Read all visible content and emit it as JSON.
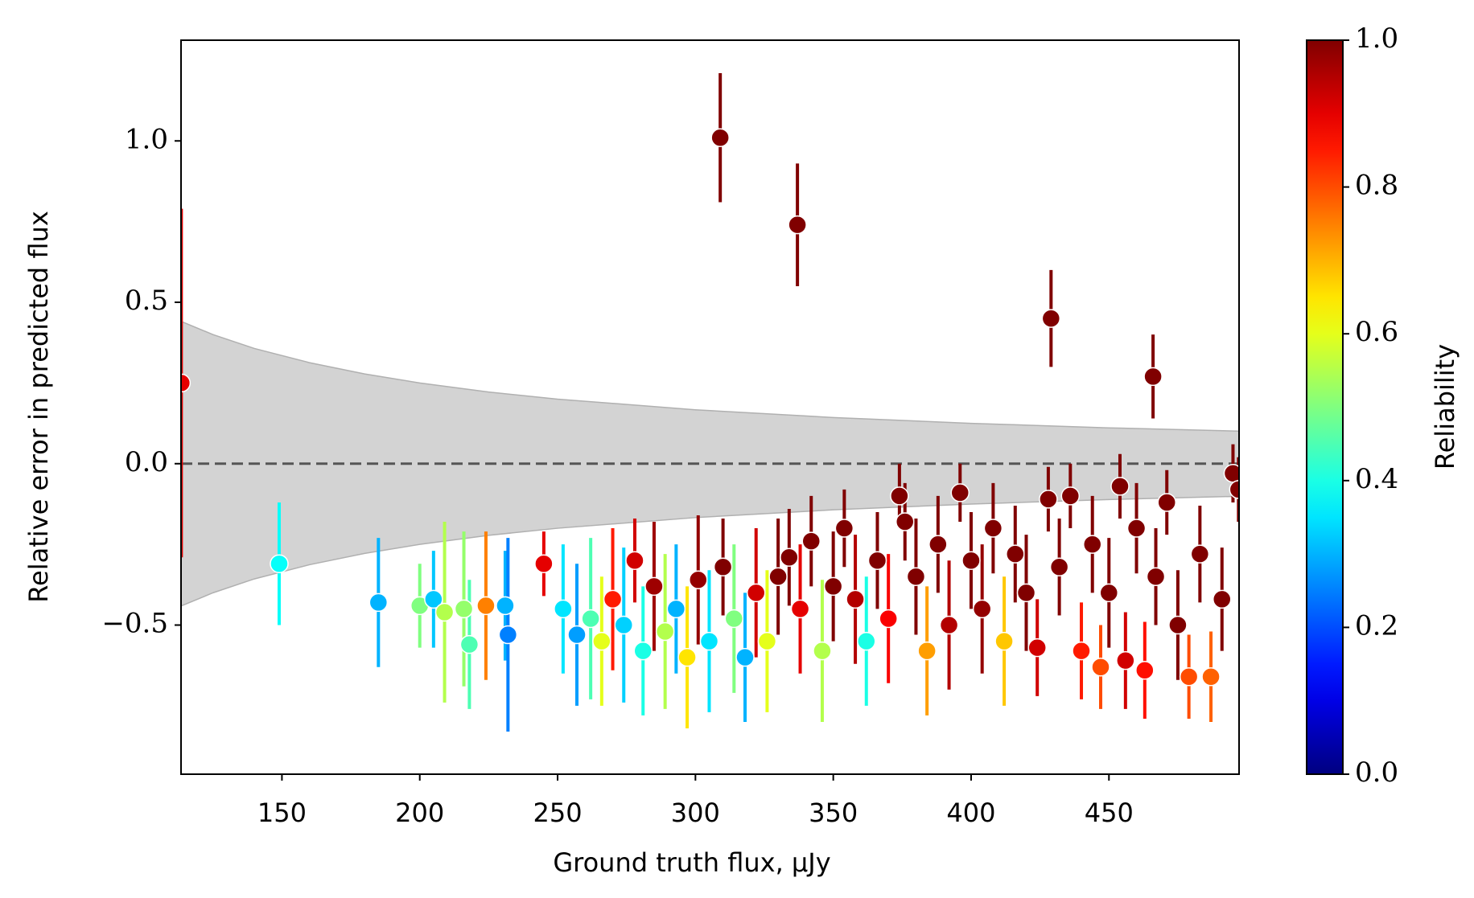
{
  "chart_data": {
    "type": "scatter",
    "xlabel": "Ground truth flux, μJy",
    "ylabel": "Relative error in predicted flux",
    "xlim": [
      113.4,
      497.2
    ],
    "xticks": [
      150,
      200,
      250,
      300,
      350,
      400,
      450
    ],
    "ylim": [
      -0.962,
      1.312
    ],
    "yticks": [
      {
        "value": -0.5,
        "label": "−0.5"
      },
      {
        "value": 0,
        "label": "0.0"
      },
      {
        "value": 0.5,
        "label": "0.5"
      },
      {
        "value": 1,
        "label": "1.0"
      }
    ],
    "hline": 0,
    "band": {
      "color": "#d3d3d3",
      "x": [
        113.4,
        125,
        140,
        160,
        180,
        200,
        225,
        250,
        300,
        350,
        400,
        450,
        497.2
      ],
      "upper": [
        0.441,
        0.4,
        0.357,
        0.313,
        0.278,
        0.25,
        0.222,
        0.2,
        0.167,
        0.143,
        0.125,
        0.111,
        0.101
      ],
      "lower": [
        -0.441,
        -0.4,
        -0.357,
        -0.313,
        -0.278,
        -0.25,
        -0.222,
        -0.2,
        -0.167,
        -0.143,
        -0.125,
        -0.111,
        -0.101
      ]
    },
    "colormap": "jet",
    "colorbar": {
      "label": "Reliability",
      "clim": [
        0,
        1
      ],
      "ticks": [
        {
          "value": 0,
          "label": "0.0"
        },
        {
          "value": 0.2,
          "label": "0.2"
        },
        {
          "value": 0.4,
          "label": "0.4"
        },
        {
          "value": 0.6,
          "label": "0.6"
        },
        {
          "value": 0.8,
          "label": "0.8"
        },
        {
          "value": 1,
          "label": "1.0"
        }
      ]
    },
    "series": [
      {
        "x": [
          113.5,
          149,
          185,
          200,
          205,
          209,
          216,
          218,
          224,
          231,
          232,
          245,
          252,
          257,
          262,
          266,
          270,
          274,
          278,
          281,
          285,
          289,
          293,
          297,
          301,
          305,
          309,
          310,
          314,
          318,
          322,
          326,
          330,
          334,
          337,
          338,
          342,
          346,
          350,
          354,
          358,
          362,
          366,
          370,
          374,
          376,
          380,
          384,
          388,
          392,
          396,
          400,
          404,
          408,
          412,
          416,
          420,
          424,
          428,
          429,
          432,
          436,
          440,
          444,
          447,
          450,
          454,
          456,
          460,
          463,
          466,
          467,
          471,
          475,
          479,
          483,
          487,
          491,
          495,
          497
        ],
        "values": [
          0.25,
          -0.31,
          -0.43,
          -0.44,
          -0.42,
          -0.46,
          -0.45,
          -0.56,
          -0.44,
          -0.44,
          -0.53,
          -0.31,
          -0.45,
          -0.53,
          -0.48,
          -0.55,
          -0.42,
          -0.5,
          -0.3,
          -0.58,
          -0.38,
          -0.52,
          -0.45,
          -0.6,
          -0.36,
          -0.55,
          1.01,
          -0.32,
          -0.48,
          -0.6,
          -0.4,
          -0.55,
          -0.35,
          -0.29,
          0.74,
          -0.45,
          -0.24,
          -0.58,
          -0.38,
          -0.2,
          -0.42,
          -0.55,
          -0.3,
          -0.48,
          -0.1,
          -0.18,
          -0.35,
          -0.58,
          -0.25,
          -0.5,
          -0.09,
          -0.3,
          -0.45,
          -0.2,
          -0.55,
          -0.28,
          -0.4,
          -0.57,
          -0.11,
          0.45,
          -0.32,
          -0.1,
          -0.58,
          -0.25,
          -0.63,
          -0.4,
          -0.07,
          -0.61,
          -0.2,
          -0.64,
          0.27,
          -0.35,
          -0.12,
          -0.5,
          -0.66,
          -0.28,
          -0.66,
          -0.42,
          -0.03,
          -0.08
        ],
        "errors": [
          0.54,
          0.19,
          0.2,
          0.13,
          0.15,
          0.28,
          0.24,
          0.2,
          0.23,
          0.17,
          0.3,
          0.1,
          0.2,
          0.22,
          0.25,
          0.2,
          0.22,
          0.24,
          0.13,
          0.2,
          0.2,
          0.24,
          0.2,
          0.22,
          0.2,
          0.22,
          0.2,
          0.15,
          0.23,
          0.2,
          0.2,
          0.22,
          0.18,
          0.15,
          0.19,
          0.2,
          0.14,
          0.22,
          0.17,
          0.12,
          0.2,
          0.2,
          0.15,
          0.2,
          0.1,
          0.12,
          0.18,
          0.2,
          0.15,
          0.2,
          0.09,
          0.15,
          0.2,
          0.14,
          0.2,
          0.15,
          0.18,
          0.15,
          0.1,
          0.15,
          0.15,
          0.1,
          0.15,
          0.15,
          0.13,
          0.17,
          0.1,
          0.15,
          0.14,
          0.15,
          0.13,
          0.15,
          0.1,
          0.17,
          0.13,
          0.15,
          0.14,
          0.16,
          0.09,
          0.1
        ],
        "reliability": [
          0.9,
          0.38,
          0.3,
          0.5,
          0.32,
          0.55,
          0.52,
          0.45,
          0.75,
          0.3,
          0.25,
          0.9,
          0.35,
          0.28,
          0.45,
          0.6,
          0.85,
          0.33,
          0.92,
          0.4,
          0.97,
          0.55,
          0.3,
          0.65,
          0.98,
          0.35,
          1.0,
          1.0,
          0.5,
          0.3,
          0.92,
          0.6,
          1.0,
          1.0,
          1.0,
          0.9,
          1.0,
          0.55,
          1.0,
          1.0,
          0.95,
          0.4,
          1.0,
          0.88,
          1.0,
          1.0,
          1.0,
          0.72,
          1.0,
          0.95,
          1.0,
          1.0,
          0.98,
          1.0,
          0.68,
          1.0,
          1.0,
          0.92,
          1.0,
          1.0,
          1.0,
          1.0,
          0.85,
          1.0,
          0.8,
          1.0,
          1.0,
          0.92,
          1.0,
          0.86,
          1.0,
          1.0,
          1.0,
          1.0,
          0.8,
          1.0,
          0.78,
          1.0,
          1.0,
          1.0
        ]
      }
    ]
  }
}
